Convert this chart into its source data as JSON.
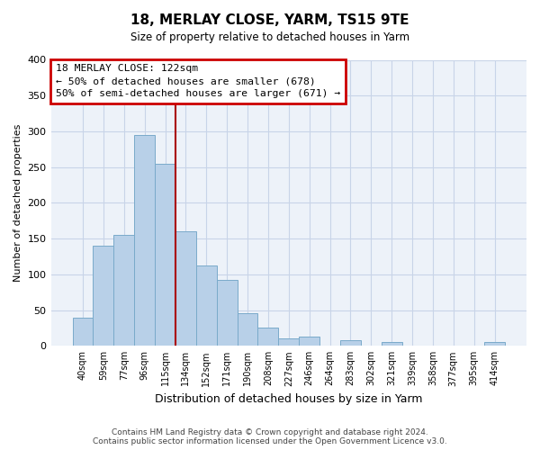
{
  "title": "18, MERLAY CLOSE, YARM, TS15 9TE",
  "subtitle": "Size of property relative to detached houses in Yarm",
  "xlabel": "Distribution of detached houses by size in Yarm",
  "ylabel": "Number of detached properties",
  "bin_labels": [
    "40sqm",
    "59sqm",
    "77sqm",
    "96sqm",
    "115sqm",
    "134sqm",
    "152sqm",
    "171sqm",
    "190sqm",
    "208sqm",
    "227sqm",
    "246sqm",
    "264sqm",
    "283sqm",
    "302sqm",
    "321sqm",
    "339sqm",
    "358sqm",
    "377sqm",
    "395sqm",
    "414sqm"
  ],
  "bar_values": [
    40,
    140,
    155,
    295,
    255,
    160,
    113,
    92,
    46,
    25,
    10,
    13,
    0,
    8,
    0,
    5,
    0,
    0,
    0,
    0,
    5
  ],
  "bar_color": "#b8d0e8",
  "bar_edge_color": "#7aaaca",
  "ylim": [
    0,
    400
  ],
  "yticks": [
    0,
    50,
    100,
    150,
    200,
    250,
    300,
    350,
    400
  ],
  "vline_x": 4.5,
  "vline_color": "#aa0000",
  "annotation_box_text": "18 MERLAY CLOSE: 122sqm\n← 50% of detached houses are smaller (678)\n50% of semi-detached houses are larger (671) →",
  "annotation_box_color": "#cc0000",
  "footer_text": "Contains HM Land Registry data © Crown copyright and database right 2024.\nContains public sector information licensed under the Open Government Licence v3.0.",
  "background_color": "#edf2f9",
  "plot_background": "#ffffff",
  "grid_color": "#c8d4e8"
}
